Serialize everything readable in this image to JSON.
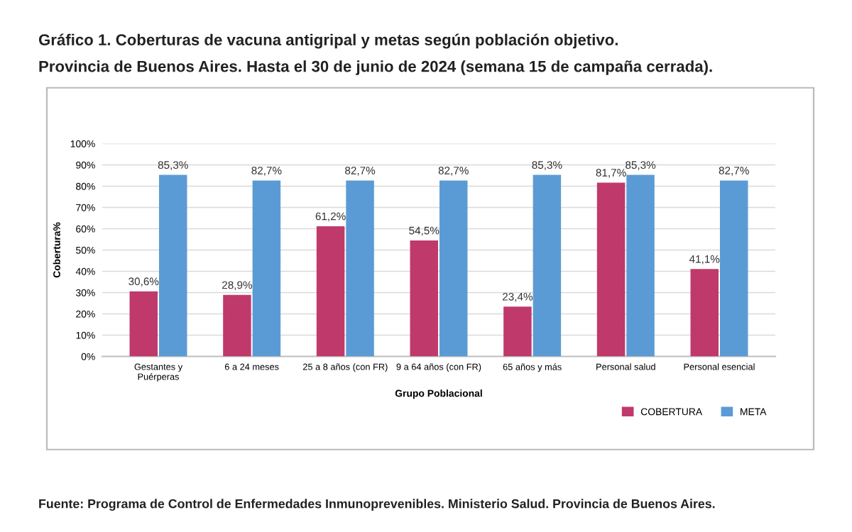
{
  "chart_data": {
    "type": "bar",
    "title": "Gráfico 1. Coberturas de vacuna antigripal y metas según población objetivo.",
    "subtitle": "Provincia de Buenos Aires. Hasta el 30 de junio de 2024 (semana 15 de campaña cerrada).",
    "xlabel": "Grupo Poblacional",
    "ylabel": "Cobertura%",
    "categories": [
      "Gestantes y\nPuérperas",
      "6 a 24 meses",
      "25 a 8 años (con FR)",
      "9 a 64 años (con FR)",
      "65 años y más",
      "Personal salud",
      "Personal esencial"
    ],
    "series": [
      {
        "name": "COBERTURA",
        "color": "#c0396b",
        "values": [
          30.6,
          28.9,
          61.2,
          54.5,
          23.4,
          81.7,
          41.1
        ],
        "value_labels": [
          "30,6%",
          "28,9%",
          "61,2%",
          "54,5%",
          "23,4%",
          "81,7%",
          "41,1%"
        ]
      },
      {
        "name": "META",
        "color": "#5b9bd5",
        "values": [
          85.3,
          82.7,
          82.7,
          82.7,
          85.3,
          85.3,
          82.7
        ],
        "value_labels": [
          "85,3%",
          "82,7%",
          "82,7%",
          "82,7%",
          "85,3%",
          "85,3%",
          "82,7%"
        ]
      }
    ],
    "ylim": [
      0,
      100
    ],
    "yticks": [
      {
        "value": 0,
        "label": "0%"
      },
      {
        "value": 10,
        "label": "10%"
      },
      {
        "value": 20,
        "label": "20%"
      },
      {
        "value": 30,
        "label": "30%"
      },
      {
        "value": 40,
        "label": "40%"
      },
      {
        "value": 50,
        "label": "50%"
      },
      {
        "value": 60,
        "label": "60%"
      },
      {
        "value": 70,
        "label": "70%"
      },
      {
        "value": 80,
        "label": "80%"
      },
      {
        "value": 90,
        "label": "90%"
      },
      {
        "value": 100,
        "label": "100%"
      }
    ],
    "grid": "y",
    "legend": "bottom right",
    "annotations": [
      "Fuente: Programa de Control de Enfermedades Inmunoprevenibles. Ministerio Salud. Provincia de Buenos Aires."
    ]
  }
}
